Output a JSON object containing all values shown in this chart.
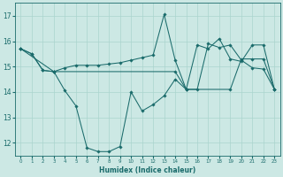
{
  "xlabel": "Humidex (Indice chaleur)",
  "xlim": [
    -0.5,
    23.5
  ],
  "ylim": [
    11.5,
    17.5
  ],
  "yticks": [
    12,
    13,
    14,
    15,
    16,
    17
  ],
  "xticks": [
    0,
    1,
    2,
    3,
    4,
    5,
    6,
    7,
    8,
    9,
    10,
    11,
    12,
    13,
    14,
    15,
    16,
    17,
    18,
    19,
    20,
    21,
    22,
    23
  ],
  "bg_color": "#cce8e4",
  "line_color": "#1a6b6b",
  "grid_color": "#aad4ce",
  "line1_x": [
    0,
    1,
    2,
    3,
    4,
    5,
    6,
    7,
    8,
    9,
    10,
    11,
    12,
    13,
    14,
    15,
    16,
    17,
    18,
    19,
    20,
    21,
    22,
    23
  ],
  "line1_y": [
    15.7,
    15.5,
    14.85,
    14.8,
    14.05,
    13.45,
    11.8,
    11.65,
    11.65,
    11.85,
    14.0,
    13.25,
    13.5,
    13.85,
    14.5,
    14.1,
    14.1,
    15.9,
    15.75,
    15.85,
    15.25,
    14.95,
    14.9,
    14.1
  ],
  "line2_x": [
    0,
    1,
    2,
    3,
    4,
    5,
    6,
    7,
    8,
    9,
    10,
    11,
    12,
    13,
    14,
    15,
    16,
    17,
    18,
    19,
    20,
    21,
    22,
    23
  ],
  "line2_y": [
    15.7,
    15.5,
    14.85,
    14.8,
    14.95,
    15.05,
    15.05,
    15.05,
    15.1,
    15.15,
    15.25,
    15.35,
    15.45,
    17.05,
    15.25,
    14.1,
    15.85,
    15.7,
    16.1,
    15.3,
    15.2,
    15.85,
    15.85,
    14.1
  ],
  "line3_x": [
    0,
    3,
    14,
    15,
    19,
    20,
    21,
    22,
    23
  ],
  "line3_y": [
    15.7,
    14.8,
    14.8,
    14.1,
    14.1,
    15.3,
    15.3,
    15.3,
    14.1
  ]
}
